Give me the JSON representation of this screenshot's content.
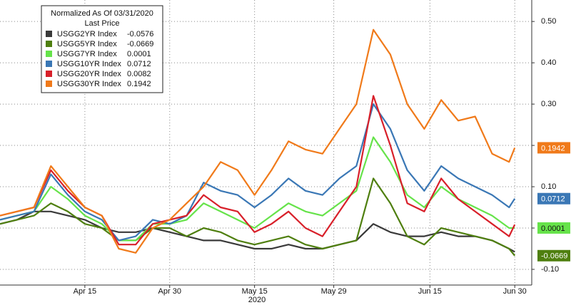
{
  "chart_data": {
    "type": "line",
    "legend_title": "Normalized As Of 03/31/2020",
    "legend_subtitle": "Last Price",
    "x_axis_label": "2020",
    "x": [
      "2020-03-31",
      "2020-04-03",
      "2020-04-06",
      "2020-04-09",
      "2020-04-12",
      "2020-04-15",
      "2020-04-18",
      "2020-04-21",
      "2020-04-24",
      "2020-04-27",
      "2020-04-30",
      "2020-05-03",
      "2020-05-06",
      "2020-05-09",
      "2020-05-12",
      "2020-05-15",
      "2020-05-18",
      "2020-05-21",
      "2020-05-24",
      "2020-05-27",
      "2020-05-30",
      "2020-06-02",
      "2020-06-05",
      "2020-06-08",
      "2020-06-11",
      "2020-06-14",
      "2020-06-17",
      "2020-06-20",
      "2020-06-23",
      "2020-06-26",
      "2020-06-29",
      "2020-06-30"
    ],
    "xlim": [
      "2020-03-31",
      "2020-07-03"
    ],
    "xticks": [
      {
        "value": "2020-04-15",
        "label": "Apr 15"
      },
      {
        "value": "2020-04-30",
        "label": "Apr 30"
      },
      {
        "value": "2020-05-15",
        "label": "May 15"
      },
      {
        "value": "2020-05-29",
        "label": "May 29"
      },
      {
        "value": "2020-06-15",
        "label": "Jun 15"
      },
      {
        "value": "2020-06-30",
        "label": "Jun 30"
      }
    ],
    "ylim": [
      -0.138,
      0.552
    ],
    "yticks": [
      {
        "value": -0.1,
        "label": "-0.10"
      },
      {
        "value": 0,
        "label": "0.00"
      },
      {
        "value": 0.1,
        "label": "0.10"
      },
      {
        "value": 0.2,
        "label": "0.20"
      },
      {
        "value": 0.3,
        "label": "0.30"
      },
      {
        "value": 0.4,
        "label": "0.40"
      },
      {
        "value": 0.5,
        "label": "0.50"
      }
    ],
    "grid": true,
    "series": [
      {
        "name": "USGG2YR Index",
        "color": "#3a3a3a",
        "end_label": false,
        "values": [
          0.01,
          0.02,
          0.04,
          0.04,
          0.03,
          0.02,
          0.0,
          -0.01,
          -0.01,
          0.0,
          -0.01,
          -0.02,
          -0.03,
          -0.03,
          -0.04,
          -0.05,
          -0.05,
          -0.04,
          -0.05,
          -0.05,
          -0.04,
          -0.03,
          0.01,
          -0.01,
          -0.02,
          -0.02,
          -0.01,
          -0.02,
          -0.02,
          -0.03,
          -0.05,
          -0.0576
        ]
      },
      {
        "name": "USGG5YR Index",
        "color": "#4f7f0f",
        "end_label": true,
        "values": [
          0.01,
          0.02,
          0.03,
          0.06,
          0.04,
          0.01,
          0.0,
          -0.03,
          -0.03,
          0.0,
          0.0,
          -0.02,
          0.0,
          -0.01,
          -0.03,
          -0.04,
          -0.03,
          -0.02,
          -0.04,
          -0.05,
          -0.04,
          -0.03,
          0.12,
          0.06,
          -0.02,
          -0.04,
          0.0,
          -0.01,
          -0.02,
          -0.03,
          -0.05,
          -0.0669
        ]
      },
      {
        "name": "USGG7YR Index",
        "color": "#66e34a",
        "end_label": true,
        "values": [
          0.02,
          0.03,
          0.04,
          0.1,
          0.07,
          0.03,
          0.01,
          -0.03,
          -0.03,
          0.01,
          0.01,
          0.02,
          0.06,
          0.04,
          0.02,
          0.0,
          0.03,
          0.06,
          0.04,
          0.03,
          0.06,
          0.09,
          0.22,
          0.16,
          0.08,
          0.05,
          0.1,
          0.07,
          0.05,
          0.03,
          0.0,
          0.0001
        ]
      },
      {
        "name": "USGG10YR Index",
        "color": "#3a77b5",
        "end_label": true,
        "values": [
          0.02,
          0.03,
          0.04,
          0.13,
          0.08,
          0.04,
          0.02,
          -0.03,
          -0.02,
          0.02,
          0.01,
          0.03,
          0.11,
          0.09,
          0.08,
          0.05,
          0.08,
          0.12,
          0.09,
          0.08,
          0.12,
          0.15,
          0.3,
          0.24,
          0.14,
          0.09,
          0.15,
          0.12,
          0.1,
          0.08,
          0.05,
          0.0712
        ]
      },
      {
        "name": "USGG20YR Index",
        "color": "#d8202a",
        "end_label": false,
        "values": [
          0.03,
          0.04,
          0.05,
          0.14,
          0.09,
          0.05,
          0.03,
          -0.04,
          -0.04,
          0.01,
          0.02,
          0.03,
          0.08,
          0.05,
          0.04,
          -0.01,
          0.01,
          0.04,
          0.0,
          -0.02,
          0.04,
          0.1,
          0.32,
          0.2,
          0.06,
          0.04,
          0.12,
          0.07,
          0.04,
          0.01,
          -0.02,
          0.0082
        ]
      },
      {
        "name": "USGG30YR Index",
        "color": "#f07a1a",
        "end_label": true,
        "values": [
          0.03,
          0.04,
          0.05,
          0.15,
          0.1,
          0.05,
          0.03,
          -0.05,
          -0.06,
          0.0,
          0.02,
          0.06,
          0.1,
          0.16,
          0.14,
          0.08,
          0.14,
          0.21,
          0.19,
          0.18,
          0.24,
          0.3,
          0.48,
          0.42,
          0.3,
          0.24,
          0.31,
          0.26,
          0.27,
          0.18,
          0.16,
          0.1942
        ]
      }
    ]
  }
}
